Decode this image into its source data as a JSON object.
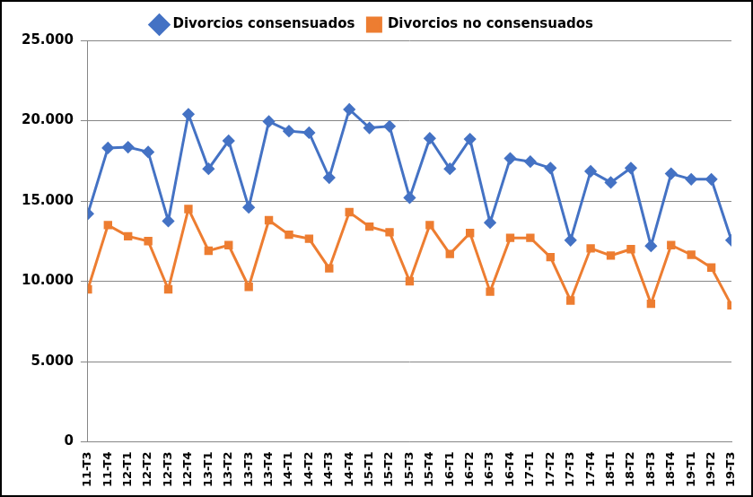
{
  "chart_data": {
    "type": "line",
    "categories": [
      "11-T3",
      "11-T4",
      "12-T1",
      "12-T2",
      "12-T3",
      "12-T4",
      "13-T1",
      "13-T2",
      "13-T3",
      "13-T4",
      "14-T1",
      "14-T2",
      "14-T3",
      "14-T4",
      "15-T1",
      "15-T2",
      "15-T3",
      "15-T4",
      "16-T1",
      "16-T2",
      "16-T3",
      "16-T4",
      "17-T1",
      "17-T2",
      "17-T3",
      "17-T4",
      "18-T1",
      "18-T2",
      "18-T3",
      "18-T4",
      "19-T1",
      "19-T2",
      "19-T3"
    ],
    "series": [
      {
        "name": "Divorcios consensuados",
        "color": "#4472c4",
        "marker": "diamond",
        "values": [
          14200,
          18300,
          18350,
          18050,
          13750,
          20400,
          17000,
          18750,
          14600,
          19950,
          19350,
          19250,
          16450,
          20700,
          19550,
          19650,
          15200,
          18900,
          17000,
          18850,
          13650,
          17650,
          17450,
          17050,
          12550,
          16850,
          16150,
          17050,
          12200,
          16700,
          16350,
          16350,
          12550
        ]
      },
      {
        "name": "Divorcios no consensuados",
        "color": "#ed7d31",
        "marker": "square",
        "values": [
          9500,
          13500,
          12800,
          12500,
          9500,
          14500,
          11900,
          12250,
          9650,
          13800,
          12900,
          12650,
          10800,
          14300,
          13400,
          13050,
          10000,
          13500,
          11700,
          13000,
          9350,
          12700,
          12700,
          11500,
          8800,
          12050,
          11600,
          12000,
          8600,
          12250,
          11650,
          10850,
          8500
        ]
      }
    ],
    "ylim": [
      0,
      25000
    ],
    "yticks": [
      0,
      {
        "value": 5000,
        "label": "5.000"
      },
      {
        "value": 10000,
        "label": "10.000"
      },
      {
        "value": 15000,
        "label": "15.000"
      },
      {
        "value": 20000,
        "label": "20.000"
      },
      {
        "value": 25000,
        "label": "25.000"
      }
    ],
    "grid": true,
    "legend": "top"
  }
}
